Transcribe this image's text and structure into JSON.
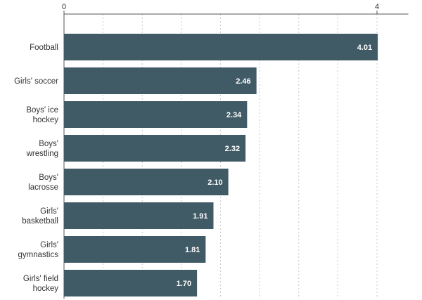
{
  "chart_data": {
    "type": "bar",
    "orientation": "horizontal",
    "categories": [
      "Football",
      "Girls' soccer",
      "Boys' ice hockey",
      "Boys' wrestling",
      "Boys' lacrosse",
      "Girls' basketball",
      "Girls' gymnastics",
      "Girls' field hockey"
    ],
    "values": [
      4.01,
      2.46,
      2.34,
      2.32,
      2.1,
      1.91,
      1.81,
      1.7
    ],
    "value_labels": [
      "4.01",
      "2.46",
      "2.34",
      "2.32",
      "2.10",
      "1.91",
      "1.81",
      "1.70"
    ],
    "xlim": [
      0,
      4.4
    ],
    "x_ticks": [
      0,
      4
    ],
    "grid": true,
    "bar_color": "#405b66",
    "value_label_color": "#ffffff"
  }
}
